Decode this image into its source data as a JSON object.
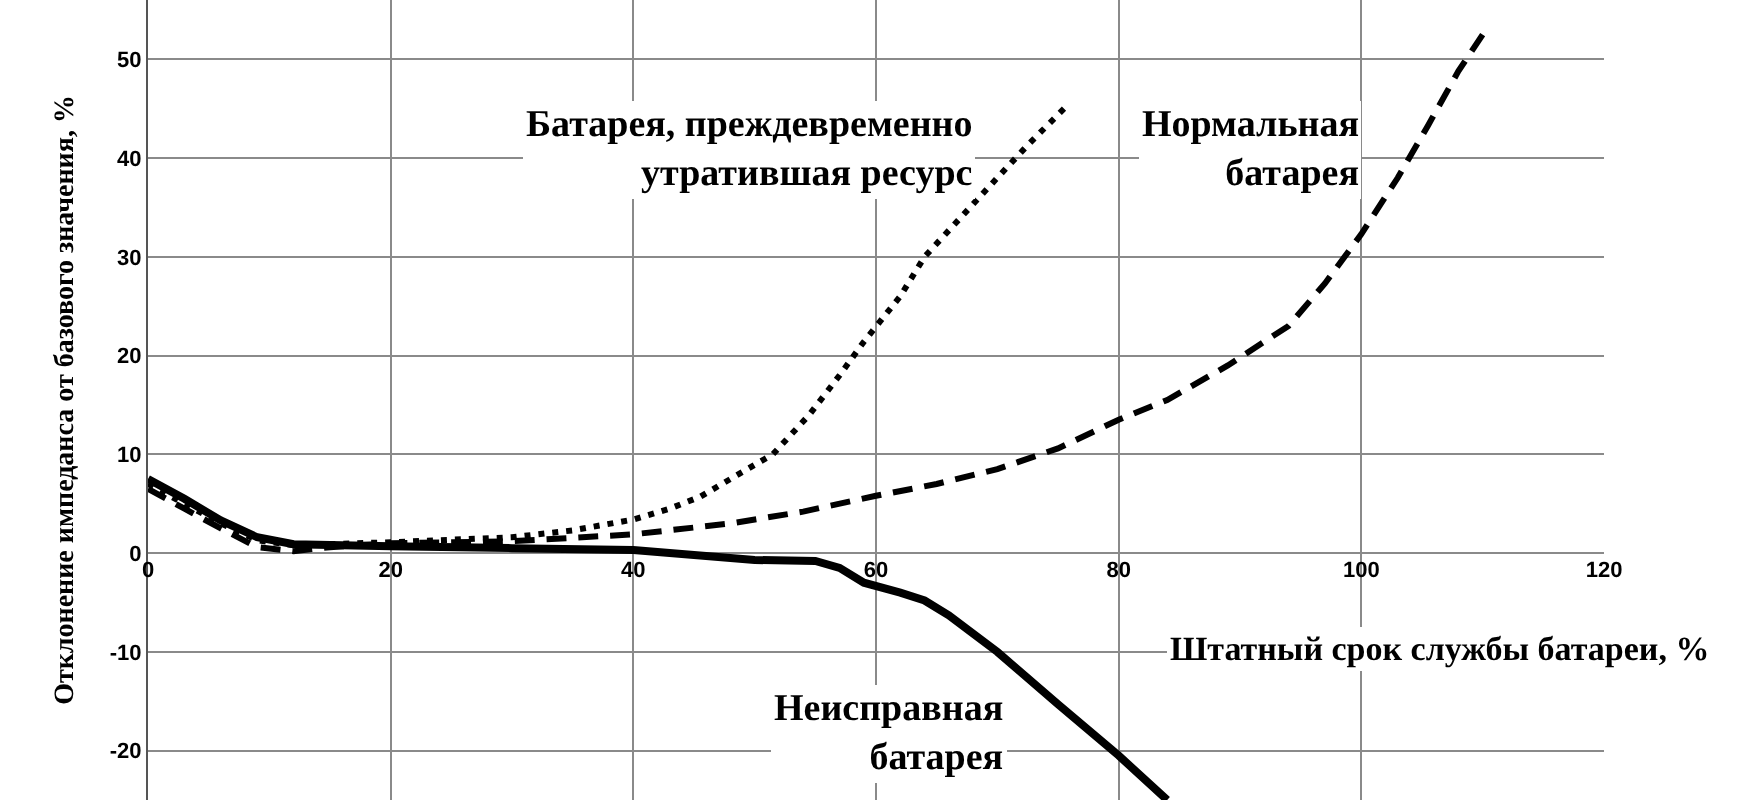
{
  "chart_data": {
    "type": "line",
    "xlabel": "Штатный срок службы батареи, %",
    "ylabel": "Отклонение импеданса от базового значения, %",
    "xlim": [
      0,
      120
    ],
    "xticks": [
      0,
      20,
      40,
      60,
      80,
      100,
      120
    ],
    "ylim": [
      -25,
      56
    ],
    "yticks": [
      -20,
      -10,
      0,
      10,
      20,
      30,
      40,
      50
    ],
    "grid": true,
    "series": [
      {
        "name": "Батарея, преждевременно утратившая ресурс",
        "color": "#000000",
        "line_style": "dotted",
        "x": [
          0,
          3,
          6,
          9,
          12,
          20,
          30,
          35,
          40,
          43,
          45.5,
          48,
          51.5,
          54.5,
          57,
          59,
          62,
          64,
          67,
          70,
          72.5,
          75.5
        ],
        "values": [
          7,
          5,
          3,
          1.3,
          0.8,
          1.1,
          1.6,
          2.3,
          3.4,
          4.5,
          5.7,
          7.5,
          10,
          14,
          18,
          21.4,
          26,
          30,
          34,
          38,
          41.3,
          45
        ]
      },
      {
        "name": "Нормальная батарея",
        "color": "#000000",
        "line_style": "dashed",
        "x": [
          0,
          3,
          6,
          9,
          12,
          15,
          20,
          30,
          40,
          48,
          54,
          60,
          65,
          70,
          75,
          80,
          84,
          89,
          94,
          97,
          100,
          103,
          105.5,
          108,
          110
        ],
        "values": [
          6.5,
          4.5,
          2.5,
          0.6,
          0.2,
          0.6,
          1,
          1.2,
          1.9,
          3,
          4.2,
          5.8,
          7,
          8.5,
          10.6,
          13.5,
          15.5,
          19,
          23,
          27.3,
          32.3,
          38,
          43.3,
          48.8,
          52.5
        ]
      },
      {
        "name": "Неисправная батарея",
        "color": "#000000",
        "line_style": "solid",
        "x": [
          0,
          3,
          6,
          9,
          12,
          20,
          30,
          40,
          45,
          50,
          55,
          57,
          59,
          62,
          64,
          66,
          70,
          75,
          80,
          84
        ],
        "values": [
          7.5,
          5.5,
          3.3,
          1.6,
          0.9,
          0.7,
          0.5,
          0.3,
          -0.2,
          -0.7,
          -0.8,
          -1.5,
          -3,
          -4,
          -4.8,
          -6.3,
          -10,
          -15.3,
          -20.5,
          -25
        ]
      }
    ]
  }
}
